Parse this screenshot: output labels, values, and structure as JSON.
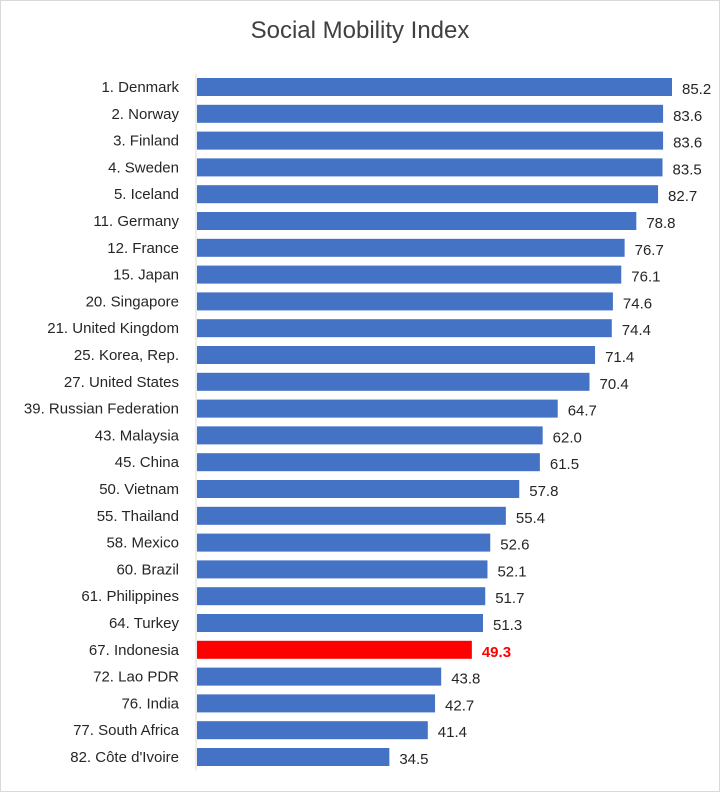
{
  "chart_data": {
    "type": "bar",
    "orientation": "horizontal",
    "title": "Social Mobility Index",
    "xlabel": "",
    "ylabel": "",
    "xlim": [
      0,
      85.2
    ],
    "grid": false,
    "legend": "none",
    "bar_color": "#4472c4",
    "highlight_color": "#ff0000",
    "highlight_category": "67. Indonesia",
    "categories": [
      "1. Denmark",
      "2. Norway",
      "3. Finland",
      "4. Sweden",
      "5. Iceland",
      "11. Germany",
      "12. France",
      "15. Japan",
      "20. Singapore",
      "21. United Kingdom",
      "25. Korea, Rep.",
      "27. United States",
      "39. Russian Federation",
      "43. Malaysia",
      "45. China",
      "50. Vietnam",
      "55. Thailand",
      "58. Mexico",
      "60. Brazil",
      "61. Philippines",
      "64. Turkey",
      "67. Indonesia",
      "72. Lao PDR",
      "76. India",
      "77. South Africa",
      "82. Côte d'Ivoire"
    ],
    "values": [
      85.2,
      83.6,
      83.6,
      83.5,
      82.7,
      78.8,
      76.7,
      76.1,
      74.6,
      74.4,
      71.4,
      70.4,
      64.7,
      62.0,
      61.5,
      57.8,
      55.4,
      52.6,
      52.1,
      51.7,
      51.3,
      49.3,
      43.8,
      42.7,
      41.4,
      34.5
    ],
    "value_labels": [
      "85.2",
      "83.6",
      "83.6",
      "83.5",
      "82.7",
      "78.8",
      "76.7",
      "76.1",
      "74.6",
      "74.4",
      "71.4",
      "70.4",
      "64.7",
      "62.0",
      "61.5",
      "57.8",
      "55.4",
      "52.6",
      "52.1",
      "51.7",
      "51.3",
      "49.3",
      "43.8",
      "42.7",
      "41.4",
      "34.5"
    ]
  }
}
